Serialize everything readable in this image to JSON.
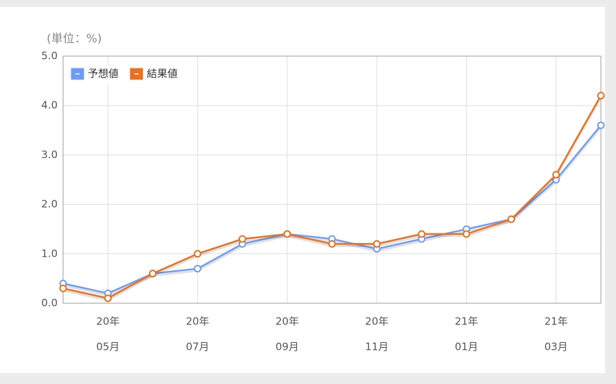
{
  "chart_data": {
    "type": "line",
    "unit_label": "(単位：%)",
    "categories": [
      null,
      [
        "20年",
        "05月"
      ],
      null,
      [
        "20年",
        "07月"
      ],
      null,
      [
        "20年",
        "09月"
      ],
      null,
      [
        "20年",
        "11月"
      ],
      null,
      [
        "21年",
        "01月"
      ],
      null,
      [
        "21年",
        "03月"
      ],
      null
    ],
    "series": [
      {
        "name": "予想値",
        "color": "#6f9cf2",
        "values": [
          0.4,
          0.2,
          0.6,
          0.7,
          1.2,
          1.4,
          1.3,
          1.1,
          1.3,
          1.5,
          1.7,
          2.5,
          3.6
        ]
      },
      {
        "name": "結果値",
        "color": "#e8701e",
        "values": [
          0.3,
          0.1,
          0.6,
          1.0,
          1.3,
          1.4,
          1.2,
          1.2,
          1.4,
          1.4,
          1.7,
          2.6,
          4.2
        ]
      }
    ],
    "ylim": [
      0,
      5
    ],
    "yticks": [
      {
        "value": 0,
        "label": "0.0"
      },
      {
        "value": 1,
        "label": "1.0"
      },
      {
        "value": 2,
        "label": "2.0"
      },
      {
        "value": 3,
        "label": "3.0"
      },
      {
        "value": 4,
        "label": "4.0"
      },
      {
        "value": 5,
        "label": "5.0"
      }
    ],
    "grid": true,
    "legend": "top-left"
  }
}
